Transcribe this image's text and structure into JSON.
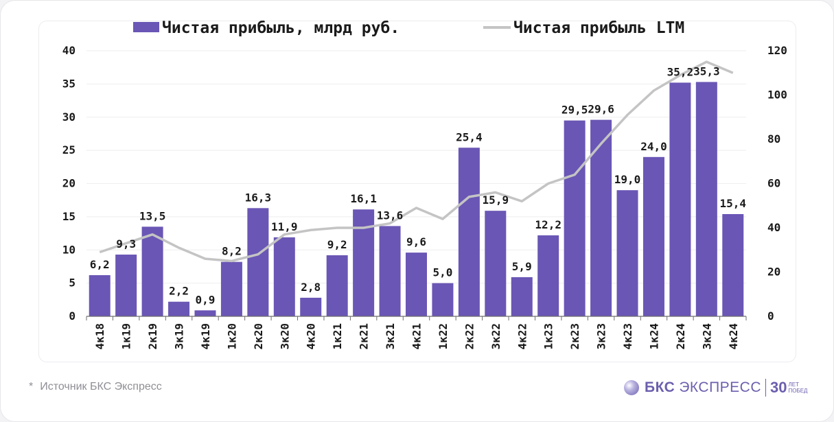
{
  "chart_data": {
    "type": "bar+line",
    "categories": [
      "4к18",
      "1к19",
      "2к19",
      "3к19",
      "4к19",
      "1к20",
      "2к20",
      "3к20",
      "4к20",
      "1к21",
      "2к21",
      "3к21",
      "4к21",
      "1к22",
      "2к22",
      "3к22",
      "4к22",
      "1к23",
      "2к23",
      "3к23",
      "4к23",
      "1к24",
      "2к24",
      "3к24",
      "4к24"
    ],
    "series": [
      {
        "name": "Чистая прибыль, млрд руб.",
        "type": "bar",
        "axis": "left",
        "values": [
          6.2,
          9.3,
          13.5,
          2.2,
          0.9,
          8.2,
          16.3,
          11.9,
          2.8,
          9.2,
          16.1,
          13.6,
          9.6,
          5.0,
          25.4,
          15.9,
          5.9,
          12.2,
          29.5,
          29.6,
          19.0,
          24.0,
          35.2,
          35.3,
          15.4
        ],
        "labels": [
          "6,2",
          "9,3",
          "13,5",
          "2,2",
          "0,9",
          "8,2",
          "16,3",
          "11,9",
          "2,8",
          "9,2",
          "16,1",
          "13,6",
          "9,6",
          "5,0",
          "25,4",
          "15,9",
          "5,9",
          "12,2",
          "29,5",
          "29,6",
          "19,0",
          "24,0",
          "35,2",
          "35,3",
          "15,4"
        ]
      },
      {
        "name": "Чистая прибыль LTM",
        "type": "line",
        "axis": "right",
        "values": [
          29,
          33,
          37,
          31,
          26,
          25,
          28,
          37,
          39,
          40,
          40,
          42,
          49,
          44,
          54,
          56,
          52,
          60,
          64,
          78,
          91,
          102,
          109,
          115,
          110
        ]
      }
    ],
    "yleft": {
      "min": 0,
      "max": 40,
      "ticks": [
        "0",
        "5",
        "10",
        "15",
        "20",
        "25",
        "30",
        "35",
        "40"
      ]
    },
    "yright": {
      "min": 0,
      "max": 120,
      "ticks": [
        "0",
        "20",
        "40",
        "60",
        "80",
        "100",
        "120"
      ]
    },
    "colors": {
      "bar": "#6a56b5",
      "line": "#c4c4c4",
      "axis": "#6e6e6e",
      "text": "#1a1a1a"
    },
    "legend_position": "top-center",
    "grid": true
  },
  "footer": {
    "star": "*",
    "source": "Источник БКС Экспресс"
  },
  "logo": {
    "brand": "БКС",
    "brand2": "ЭКСПРЕСС",
    "number": "30",
    "line1": "ЛЕТ",
    "line2": "ПОБЕД"
  }
}
